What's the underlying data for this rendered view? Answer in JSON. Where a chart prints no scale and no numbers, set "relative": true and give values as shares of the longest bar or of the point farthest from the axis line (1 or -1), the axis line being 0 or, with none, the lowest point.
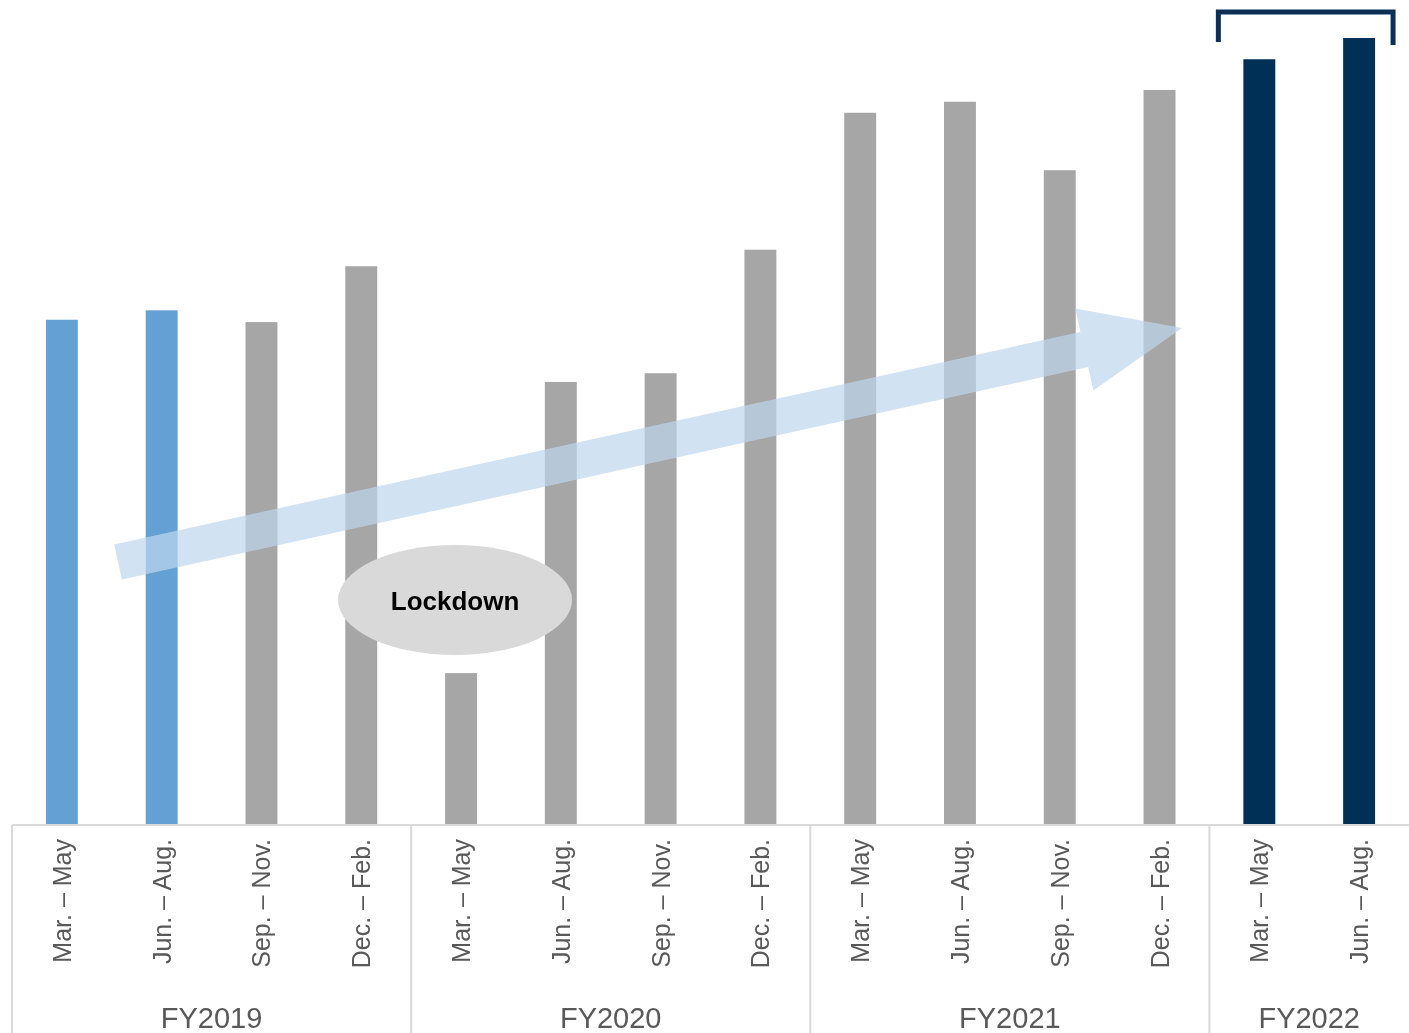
{
  "chart_data": {
    "type": "bar",
    "relative": true,
    "categories": [
      "Mar. – May",
      "Jun. – Aug.",
      "Sep. – Nov.",
      "Dec. – Feb.",
      "Mar. – May",
      "Jun. – Aug.",
      "Sep. – Nov.",
      "Dec. – Feb.",
      "Mar. – May",
      "Jun. – Aug.",
      "Sep. – Nov.",
      "Dec. – Feb.",
      "Mar. – May",
      "Jun. – Aug."
    ],
    "values": [
      0.642,
      0.654,
      0.639,
      0.71,
      0.193,
      0.563,
      0.574,
      0.731,
      0.905,
      0.919,
      0.832,
      0.934,
      0.973,
      1
    ],
    "colors": [
      "#64a0d4",
      "#64a0d4",
      "#a6a6a6",
      "#a6a6a6",
      "#a6a6a6",
      "#a6a6a6",
      "#a6a6a6",
      "#a6a6a6",
      "#a6a6a6",
      "#a6a6a6",
      "#a6a6a6",
      "#a6a6a6",
      "#003056",
      "#003056"
    ],
    "annotations": [
      "FY2019",
      "FY2020",
      "FY2021",
      "FY2022",
      "Lockdown"
    ]
  }
}
